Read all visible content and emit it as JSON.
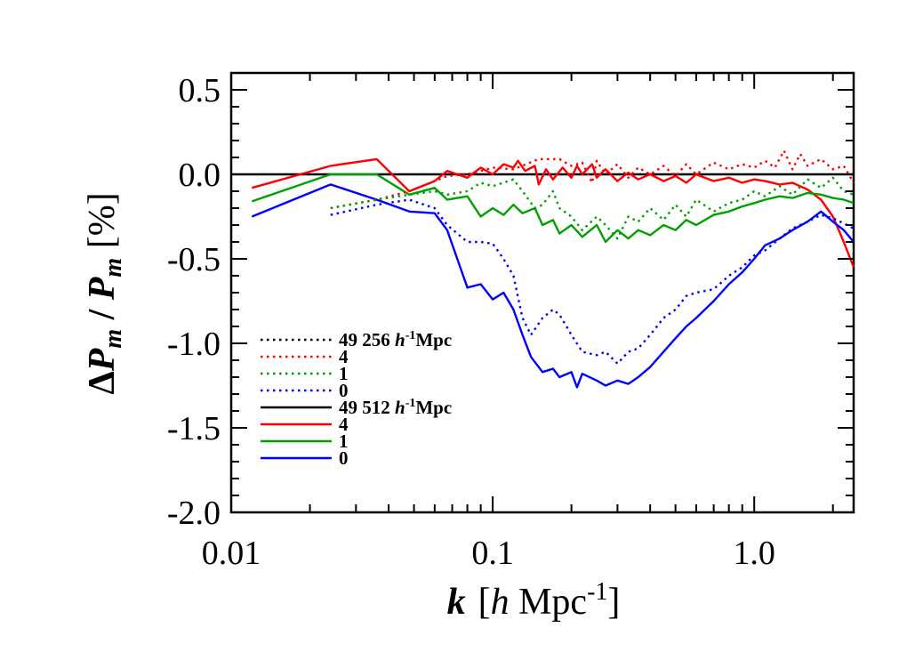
{
  "chart_data": {
    "type": "line",
    "title": "",
    "xlabel": {
      "var": "k",
      "open": "[",
      "h": "h",
      "mpc": " Mpc",
      "exp": "-1",
      "close": "]"
    },
    "ylabel": {
      "delta": "Δ",
      "p1": "P",
      "sub1": "m",
      "slash": " / ",
      "p2": "P",
      "sub2": "m",
      "unit": "  [%]"
    },
    "xscale": "log",
    "xlim": [
      0.01,
      2.4
    ],
    "ylim": [
      -2.0,
      0.6
    ],
    "xticks": [
      0.01,
      0.1,
      1.0
    ],
    "xtick_labels": [
      "0.01",
      "0.1",
      "1.0"
    ],
    "yticks": [
      0.5,
      0.0,
      -0.5,
      -1.0,
      -1.5,
      -2.0
    ],
    "ytick_labels": [
      "0.5",
      "0.0",
      "-0.5",
      "-1.0",
      "-1.5",
      "-2.0"
    ],
    "reference_line_y": 0.0,
    "grid": false,
    "legend_position": "lower-left",
    "legend": [
      {
        "label": "49",
        "extra_num": "256",
        "h": "h",
        "exp": "-1",
        "unit": "Mpc",
        "color": "#000000",
        "style": "dotted"
      },
      {
        "label": "4",
        "color": "#ff0000",
        "style": "dotted"
      },
      {
        "label": "1",
        "color": "#00a000",
        "style": "dotted"
      },
      {
        "label": "0",
        "color": "#0000ff",
        "style": "dotted"
      },
      {
        "label": "49",
        "extra_num": "512",
        "h": "h",
        "exp": "-1",
        "unit": "Mpc",
        "color": "#000000",
        "style": "solid"
      },
      {
        "label": "4",
        "color": "#ff0000",
        "style": "solid"
      },
      {
        "label": "1",
        "color": "#00a000",
        "style": "solid"
      },
      {
        "label": "0",
        "color": "#0000ff",
        "style": "solid"
      }
    ],
    "series": [
      {
        "color": "#ff0000",
        "style": "solid",
        "points": [
          [
            0.012,
            -0.08
          ],
          [
            0.024,
            0.05
          ],
          [
            0.036,
            0.09
          ],
          [
            0.048,
            -0.1
          ],
          [
            0.06,
            -0.04
          ],
          [
            0.067,
            0.02
          ],
          [
            0.08,
            -0.02
          ],
          [
            0.09,
            0.04
          ],
          [
            0.1,
            0.0
          ],
          [
            0.11,
            0.06
          ],
          [
            0.12,
            0.04
          ],
          [
            0.125,
            0.08
          ],
          [
            0.133,
            0.02
          ],
          [
            0.145,
            0.05
          ],
          [
            0.15,
            -0.06
          ],
          [
            0.16,
            0.03
          ],
          [
            0.17,
            -0.03
          ],
          [
            0.185,
            0.04
          ],
          [
            0.2,
            -0.02
          ],
          [
            0.21,
            0.05
          ],
          [
            0.22,
            0.0
          ],
          [
            0.24,
            0.06
          ],
          [
            0.25,
            -0.02
          ],
          [
            0.27,
            0.03
          ],
          [
            0.3,
            -0.04
          ],
          [
            0.33,
            0.01
          ],
          [
            0.36,
            -0.03
          ],
          [
            0.4,
            0.0
          ],
          [
            0.45,
            -0.04
          ],
          [
            0.5,
            -0.01
          ],
          [
            0.55,
            -0.05
          ],
          [
            0.6,
            0.0
          ],
          [
            0.7,
            -0.04
          ],
          [
            0.8,
            -0.02
          ],
          [
            0.9,
            -0.05
          ],
          [
            1.0,
            -0.03
          ],
          [
            1.1,
            -0.04
          ],
          [
            1.25,
            -0.06
          ],
          [
            1.4,
            -0.05
          ],
          [
            1.6,
            -0.09
          ],
          [
            1.8,
            -0.15
          ],
          [
            2.0,
            -0.25
          ],
          [
            2.2,
            -0.4
          ],
          [
            2.4,
            -0.55
          ]
        ]
      },
      {
        "color": "#00a000",
        "style": "solid",
        "points": [
          [
            0.012,
            -0.16
          ],
          [
            0.024,
            0.0
          ],
          [
            0.036,
            0.0
          ],
          [
            0.048,
            -0.12
          ],
          [
            0.06,
            -0.08
          ],
          [
            0.067,
            -0.15
          ],
          [
            0.08,
            -0.13
          ],
          [
            0.09,
            -0.25
          ],
          [
            0.1,
            -0.2
          ],
          [
            0.11,
            -0.24
          ],
          [
            0.12,
            -0.18
          ],
          [
            0.13,
            -0.23
          ],
          [
            0.145,
            -0.2
          ],
          [
            0.155,
            -0.3
          ],
          [
            0.17,
            -0.27
          ],
          [
            0.18,
            -0.35
          ],
          [
            0.2,
            -0.3
          ],
          [
            0.22,
            -0.37
          ],
          [
            0.25,
            -0.3
          ],
          [
            0.27,
            -0.4
          ],
          [
            0.3,
            -0.33
          ],
          [
            0.33,
            -0.38
          ],
          [
            0.36,
            -0.33
          ],
          [
            0.4,
            -0.36
          ],
          [
            0.45,
            -0.3
          ],
          [
            0.5,
            -0.33
          ],
          [
            0.55,
            -0.27
          ],
          [
            0.6,
            -0.3
          ],
          [
            0.7,
            -0.24
          ],
          [
            0.8,
            -0.22
          ],
          [
            0.9,
            -0.19
          ],
          [
            1.0,
            -0.17
          ],
          [
            1.1,
            -0.15
          ],
          [
            1.25,
            -0.13
          ],
          [
            1.4,
            -0.14
          ],
          [
            1.6,
            -0.11
          ],
          [
            1.8,
            -0.12
          ],
          [
            2.0,
            -0.14
          ],
          [
            2.2,
            -0.15
          ],
          [
            2.4,
            -0.17
          ]
        ]
      },
      {
        "color": "#0000ff",
        "style": "solid",
        "points": [
          [
            0.012,
            -0.25
          ],
          [
            0.024,
            -0.06
          ],
          [
            0.036,
            -0.15
          ],
          [
            0.048,
            -0.22
          ],
          [
            0.06,
            -0.23
          ],
          [
            0.067,
            -0.33
          ],
          [
            0.08,
            -0.67
          ],
          [
            0.09,
            -0.65
          ],
          [
            0.1,
            -0.74
          ],
          [
            0.11,
            -0.7
          ],
          [
            0.12,
            -0.8
          ],
          [
            0.13,
            -0.95
          ],
          [
            0.14,
            -1.08
          ],
          [
            0.155,
            -1.17
          ],
          [
            0.17,
            -1.15
          ],
          [
            0.18,
            -1.2
          ],
          [
            0.2,
            -1.17
          ],
          [
            0.21,
            -1.26
          ],
          [
            0.22,
            -1.18
          ],
          [
            0.25,
            -1.22
          ],
          [
            0.27,
            -1.25
          ],
          [
            0.3,
            -1.22
          ],
          [
            0.33,
            -1.24
          ],
          [
            0.36,
            -1.2
          ],
          [
            0.4,
            -1.14
          ],
          [
            0.45,
            -1.05
          ],
          [
            0.5,
            -0.97
          ],
          [
            0.55,
            -0.9
          ],
          [
            0.6,
            -0.85
          ],
          [
            0.7,
            -0.75
          ],
          [
            0.8,
            -0.65
          ],
          [
            0.9,
            -0.58
          ],
          [
            1.0,
            -0.5
          ],
          [
            1.1,
            -0.42
          ],
          [
            1.25,
            -0.38
          ],
          [
            1.4,
            -0.33
          ],
          [
            1.6,
            -0.28
          ],
          [
            1.8,
            -0.22
          ],
          [
            2.0,
            -0.28
          ],
          [
            2.2,
            -0.33
          ],
          [
            2.4,
            -0.4
          ]
        ]
      },
      {
        "color": "#ff0000",
        "style": "dotted",
        "points": [
          [
            0.024,
            -0.2
          ],
          [
            0.036,
            -0.15
          ],
          [
            0.048,
            -0.1
          ],
          [
            0.06,
            -0.04
          ],
          [
            0.067,
            -0.01
          ],
          [
            0.08,
            0.0
          ],
          [
            0.09,
            0.02
          ],
          [
            0.1,
            0.04
          ],
          [
            0.12,
            0.03
          ],
          [
            0.15,
            0.09
          ],
          [
            0.18,
            0.09
          ],
          [
            0.2,
            0.05
          ],
          [
            0.22,
            0.07
          ],
          [
            0.24,
            -0.05
          ],
          [
            0.25,
            0.08
          ],
          [
            0.27,
            0.0
          ],
          [
            0.3,
            0.06
          ],
          [
            0.33,
            -0.02
          ],
          [
            0.36,
            0.04
          ],
          [
            0.4,
            0.0
          ],
          [
            0.45,
            0.05
          ],
          [
            0.5,
            -0.01
          ],
          [
            0.55,
            0.06
          ],
          [
            0.6,
            0.0
          ],
          [
            0.7,
            0.07
          ],
          [
            0.8,
            0.03
          ],
          [
            0.9,
            0.06
          ],
          [
            1.0,
            0.04
          ],
          [
            1.1,
            0.08
          ],
          [
            1.2,
            0.04
          ],
          [
            1.3,
            0.14
          ],
          [
            1.4,
            0.03
          ],
          [
            1.5,
            0.12
          ],
          [
            1.6,
            0.05
          ],
          [
            1.8,
            0.09
          ],
          [
            2.0,
            0.03
          ],
          [
            2.2,
            0.05
          ],
          [
            2.4,
            -0.05
          ]
        ]
      },
      {
        "color": "#00a000",
        "style": "dotted",
        "points": [
          [
            0.024,
            -0.2
          ],
          [
            0.036,
            -0.15
          ],
          [
            0.048,
            -0.12
          ],
          [
            0.06,
            -0.1
          ],
          [
            0.067,
            -0.12
          ],
          [
            0.08,
            -0.1
          ],
          [
            0.09,
            -0.05
          ],
          [
            0.1,
            -0.07
          ],
          [
            0.12,
            -0.03
          ],
          [
            0.13,
            -0.1
          ],
          [
            0.145,
            -0.2
          ],
          [
            0.155,
            -0.18
          ],
          [
            0.17,
            -0.1
          ],
          [
            0.18,
            -0.2
          ],
          [
            0.2,
            -0.25
          ],
          [
            0.22,
            -0.33
          ],
          [
            0.25,
            -0.25
          ],
          [
            0.27,
            -0.3
          ],
          [
            0.3,
            -0.38
          ],
          [
            0.33,
            -0.25
          ],
          [
            0.36,
            -0.28
          ],
          [
            0.4,
            -0.2
          ],
          [
            0.45,
            -0.27
          ],
          [
            0.5,
            -0.18
          ],
          [
            0.55,
            -0.25
          ],
          [
            0.6,
            -0.15
          ],
          [
            0.7,
            -0.22
          ],
          [
            0.8,
            -0.17
          ],
          [
            0.9,
            -0.15
          ],
          [
            1.0,
            -0.1
          ],
          [
            1.1,
            -0.13
          ],
          [
            1.25,
            -0.07
          ],
          [
            1.4,
            -0.12
          ],
          [
            1.6,
            -0.03
          ],
          [
            1.8,
            -0.08
          ],
          [
            2.0,
            -0.02
          ],
          [
            2.2,
            -0.1
          ],
          [
            2.4,
            -0.12
          ]
        ]
      },
      {
        "color": "#0000ff",
        "style": "dotted",
        "points": [
          [
            0.024,
            -0.24
          ],
          [
            0.036,
            -0.18
          ],
          [
            0.048,
            -0.15
          ],
          [
            0.06,
            -0.2
          ],
          [
            0.067,
            -0.3
          ],
          [
            0.08,
            -0.4
          ],
          [
            0.09,
            -0.4
          ],
          [
            0.1,
            -0.41
          ],
          [
            0.11,
            -0.5
          ],
          [
            0.12,
            -0.6
          ],
          [
            0.13,
            -0.85
          ],
          [
            0.14,
            -0.95
          ],
          [
            0.155,
            -0.85
          ],
          [
            0.17,
            -0.8
          ],
          [
            0.18,
            -0.83
          ],
          [
            0.2,
            -0.95
          ],
          [
            0.22,
            -1.05
          ],
          [
            0.25,
            -1.07
          ],
          [
            0.27,
            -1.05
          ],
          [
            0.3,
            -1.12
          ],
          [
            0.33,
            -1.05
          ],
          [
            0.36,
            -1.03
          ],
          [
            0.4,
            -0.95
          ],
          [
            0.45,
            -0.85
          ],
          [
            0.5,
            -0.8
          ],
          [
            0.55,
            -0.72
          ],
          [
            0.6,
            -0.7
          ],
          [
            0.7,
            -0.68
          ],
          [
            0.8,
            -0.6
          ],
          [
            0.9,
            -0.55
          ],
          [
            1.0,
            -0.48
          ],
          [
            1.1,
            -0.45
          ],
          [
            1.25,
            -0.38
          ],
          [
            1.4,
            -0.32
          ],
          [
            1.6,
            -0.28
          ],
          [
            1.8,
            -0.24
          ],
          [
            2.0,
            -0.26
          ],
          [
            2.2,
            -0.29
          ],
          [
            2.4,
            -0.32
          ]
        ]
      }
    ]
  }
}
